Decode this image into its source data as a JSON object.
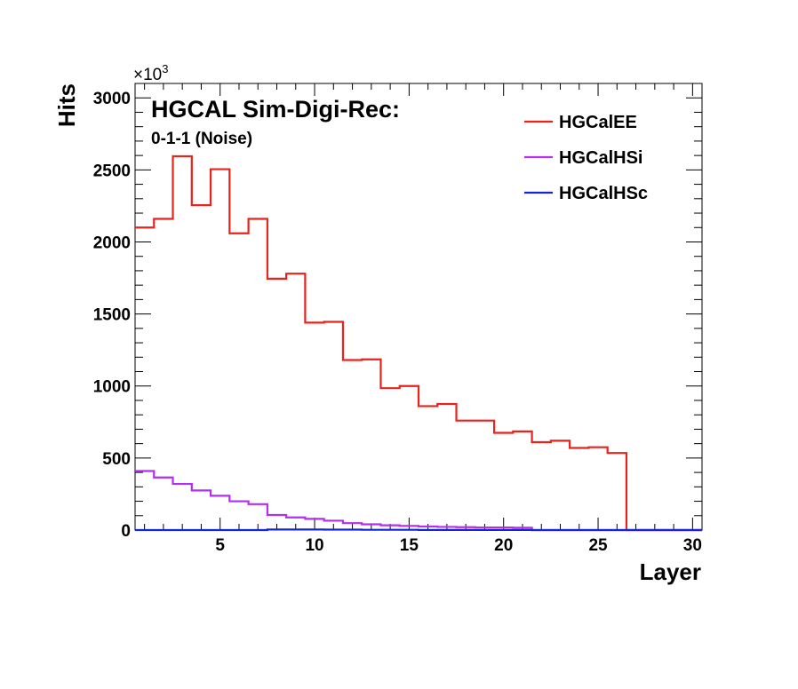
{
  "chart_data": {
    "type": "histogram",
    "title": "HGCAL Sim-Digi-Rec:",
    "subtitle": "0-1-1 (Noise)",
    "xlabel": "Layer",
    "ylabel": "Hits",
    "y_exponent_base": "×10",
    "y_exponent_power": "3",
    "xlim": [
      0.5,
      30.5
    ],
    "ylim": [
      0,
      3100
    ],
    "x_ticks": [
      5,
      10,
      15,
      20,
      25,
      30
    ],
    "y_ticks": [
      0,
      500,
      1000,
      1500,
      2000,
      2500,
      3000
    ],
    "legend_position": "top-right",
    "grid": false,
    "bin_lows": [
      0.5,
      1.5,
      2.5,
      3.5,
      4.5,
      5.5,
      6.5,
      7.5,
      8.5,
      9.5,
      10.5,
      11.5,
      12.5,
      13.5,
      14.5,
      15.5,
      16.5,
      17.5,
      18.5,
      19.5,
      20.5,
      21.5,
      22.5,
      23.5,
      24.5,
      25.5,
      26.5,
      27.5,
      28.5,
      29.5
    ],
    "series": [
      {
        "name": "HGCalEE",
        "color": "#e8231a",
        "values": [
          2100,
          2160,
          2595,
          2255,
          2505,
          2060,
          2160,
          1745,
          1780,
          1440,
          1445,
          1180,
          1185,
          985,
          1000,
          860,
          875,
          760,
          760,
          675,
          685,
          610,
          620,
          570,
          575,
          535,
          0,
          0,
          0,
          0
        ]
      },
      {
        "name": "HGCalHSi",
        "color": "#b32ef0",
        "values": [
          410,
          365,
          320,
          275,
          238,
          200,
          180,
          105,
          88,
          78,
          65,
          48,
          40,
          33,
          29,
          25,
          22,
          20,
          18,
          18,
          16,
          0,
          0,
          0,
          0,
          0,
          0,
          0,
          0,
          0
        ]
      },
      {
        "name": "HGCalHSc",
        "color": "#1326d6",
        "values": [
          0,
          0,
          0,
          0,
          0,
          0,
          0,
          4,
          4,
          4,
          3,
          3,
          2,
          2,
          2,
          1,
          1,
          1,
          1,
          1,
          1,
          0,
          0,
          0,
          0,
          0,
          0,
          0,
          0,
          0
        ]
      }
    ]
  }
}
